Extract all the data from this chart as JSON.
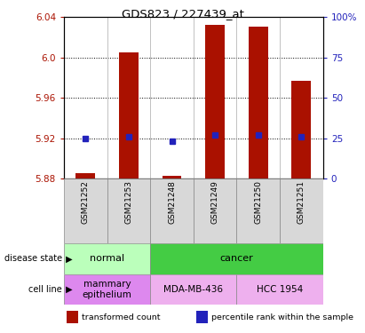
{
  "title": "GDS823 / 227439_at",
  "samples": [
    "GSM21252",
    "GSM21253",
    "GSM21248",
    "GSM21249",
    "GSM21250",
    "GSM21251"
  ],
  "transformed_counts": [
    5.885,
    6.005,
    5.883,
    6.032,
    6.03,
    5.977
  ],
  "percentile_ranks": [
    25,
    26,
    23,
    27,
    27,
    26
  ],
  "ylim_left": [
    5.88,
    6.04
  ],
  "ylim_right": [
    0,
    100
  ],
  "yticks_left": [
    5.88,
    5.92,
    5.96,
    6.0,
    6.04
  ],
  "yticks_right": [
    0,
    25,
    50,
    75,
    100
  ],
  "bar_color": "#aa1100",
  "dot_color": "#2222bb",
  "disease_state_groups": [
    {
      "label": "normal",
      "start": 0,
      "end": 2,
      "color": "#bbffbb"
    },
    {
      "label": "cancer",
      "start": 2,
      "end": 6,
      "color": "#44cc44"
    }
  ],
  "cell_line_groups": [
    {
      "label": "mammary\nepithelium",
      "start": 0,
      "end": 2,
      "color": "#dd88ee"
    },
    {
      "label": "MDA-MB-436",
      "start": 2,
      "end": 4,
      "color": "#eeb0ee"
    },
    {
      "label": "HCC 1954",
      "start": 4,
      "end": 6,
      "color": "#eeb0ee"
    }
  ],
  "bar_bottom": 5.88,
  "bar_width": 0.45
}
